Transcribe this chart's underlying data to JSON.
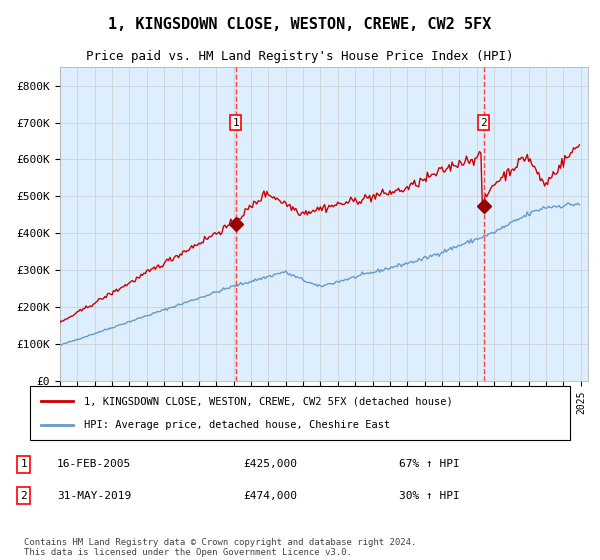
{
  "title": "1, KINGSDOWN CLOSE, WESTON, CREWE, CW2 5FX",
  "subtitle": "Price paid vs. HM Land Registry's House Price Index (HPI)",
  "legend_line1": "1, KINGSDOWN CLOSE, WESTON, CREWE, CW2 5FX (detached house)",
  "legend_line2": "HPI: Average price, detached house, Cheshire East",
  "sale1_label": "1",
  "sale1_date": "16-FEB-2005",
  "sale1_price": 425000,
  "sale1_hpi_change": "67% ↑ HPI",
  "sale2_label": "2",
  "sale2_date": "31-MAY-2019",
  "sale2_price": 474000,
  "sale2_hpi_change": "30% ↑ HPI",
  "footer": "Contains HM Land Registry data © Crown copyright and database right 2024.\nThis data is licensed under the Open Government Licence v3.0.",
  "hpi_color": "#6699cc",
  "price_color": "#cc0000",
  "sale_marker_color": "#990000",
  "vline_color": "#ff4444",
  "background_color": "#ddeeff",
  "plot_bg": "#ffffff",
  "grid_color": "#cccccc",
  "ylim": [
    0,
    850000
  ],
  "yticks": [
    0,
    100000,
    200000,
    300000,
    400000,
    500000,
    600000,
    700000,
    800000
  ],
  "ytick_labels": [
    "£0",
    "£100K",
    "£200K",
    "£300K",
    "£400K",
    "£500K",
    "£600K",
    "£700K",
    "£800K"
  ]
}
